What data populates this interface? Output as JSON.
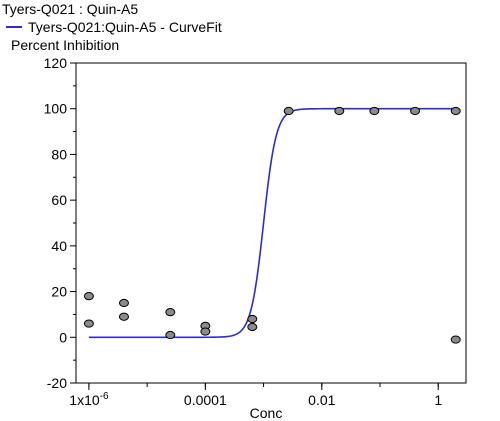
{
  "chart_data": {
    "type": "scatter",
    "title": "Tyers-Q021  : Quin-A5",
    "xlabel": "Conc",
    "ylabel": "Percent Inhibition",
    "x_scale": "log",
    "xlim": [
      6e-07,
      3
    ],
    "ylim": [
      -20,
      120
    ],
    "y_ticks": [
      -20,
      0,
      20,
      40,
      60,
      80,
      100,
      120
    ],
    "x_ticks": [
      {
        "value": 1e-06,
        "mantissa": "1x10",
        "exponent": "-6"
      },
      {
        "value": 0.0001,
        "mantissa": "0.0001",
        "exponent": ""
      },
      {
        "value": 0.01,
        "mantissa": "0.01",
        "exponent": ""
      },
      {
        "value": 1,
        "mantissa": "1",
        "exponent": ""
      }
    ],
    "grid": false,
    "legend_position": "top-left",
    "series": [
      {
        "name": "Tyers-Q021:Quin-A5 - CurveFit",
        "kind": "line",
        "color": "#2b2bd6",
        "fit": {
          "model": "4PL",
          "bottom": 0,
          "top": 100,
          "ec50": 0.001,
          "hill": 4
        }
      },
      {
        "kind": "scatter",
        "color": "#8a8a8a",
        "points": [
          {
            "x": 1e-06,
            "y": 18
          },
          {
            "x": 1e-06,
            "y": 6
          },
          {
            "x": 4e-06,
            "y": 15
          },
          {
            "x": 4e-06,
            "y": 9
          },
          {
            "x": 2.5e-05,
            "y": 11
          },
          {
            "x": 2.5e-05,
            "y": 1
          },
          {
            "x": 0.0001,
            "y": 5
          },
          {
            "x": 0.0001,
            "y": 2.5
          },
          {
            "x": 0.00064,
            "y": 8
          },
          {
            "x": 0.00064,
            "y": 4.5
          },
          {
            "x": 0.0027,
            "y": 99
          },
          {
            "x": 0.02,
            "y": 99
          },
          {
            "x": 0.08,
            "y": 99
          },
          {
            "x": 0.4,
            "y": 99
          },
          {
            "x": 2,
            "y": 99
          },
          {
            "x": 2,
            "y": -1
          }
        ]
      }
    ]
  }
}
